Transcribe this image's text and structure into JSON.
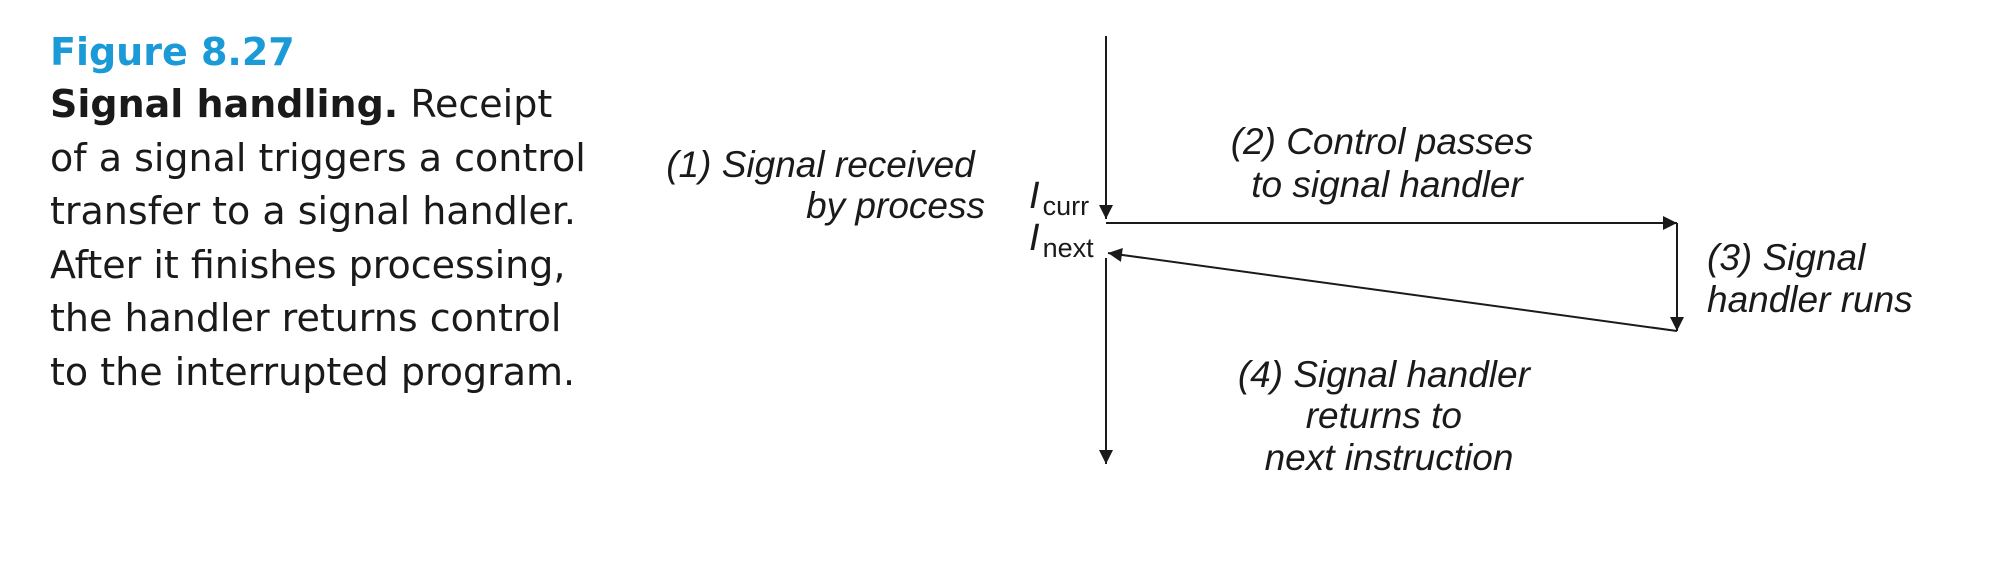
{
  "caption": {
    "figure_label": "Figure 8.27",
    "title": "Signal handling.",
    "text": "Receipt of a signal triggers a control transfer to a signal handler. After it finishes processing, the handler returns control to the interrupted program."
  },
  "diagram": {
    "step1": [
      "(1) Signal received",
      "by process"
    ],
    "step2": [
      "(2) Control passes",
      "to signal handler"
    ],
    "step3": [
      "(3) Signal",
      "handler runs"
    ],
    "step4": [
      "(4) Signal handler",
      "returns to",
      "next instruction"
    ],
    "icurr": {
      "letter": "I",
      "sub": "curr"
    },
    "inext": {
      "letter": "I",
      "sub": "next"
    }
  }
}
